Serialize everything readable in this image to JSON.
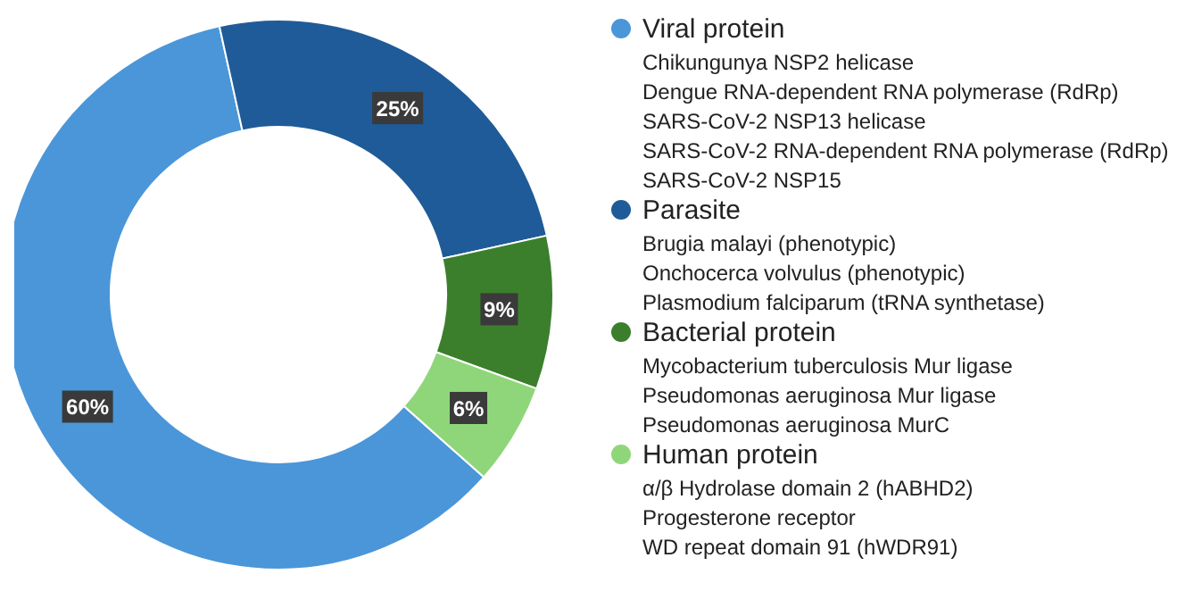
{
  "chart_data": {
    "type": "donut",
    "categories": [
      "Viral protein",
      "Parasite",
      "Bacterial protein",
      "Human protein"
    ],
    "values": [
      60,
      25,
      9,
      6
    ],
    "colors": [
      "#4a96d9",
      "#1f5b98",
      "#3b7f2c",
      "#8fd67a"
    ],
    "value_labels": [
      "60%",
      "25%",
      "9%",
      "6%"
    ],
    "legend": "right",
    "annotations": [
      {
        "text": "Chikungunya NSP2 helicase",
        "x": "Viral protein"
      },
      {
        "text": "Dengue RNA-dependent RNA polymerase (RdRp)",
        "x": "Viral protein"
      },
      {
        "text": "SARS-CoV-2 NSP13 helicase",
        "x": "Viral protein"
      },
      {
        "text": "SARS-CoV-2 RNA-dependent RNA polymerase (RdRp)",
        "x": "Viral protein"
      },
      {
        "text": "SARS-CoV-2 NSP15",
        "x": "Viral protein"
      },
      {
        "text": "Brugia malayi (phenotypic)",
        "x": "Parasite"
      },
      {
        "text": "Onchocerca volvulus (phenotypic)",
        "x": "Parasite"
      },
      {
        "text": "Plasmodium falciparum (tRNA synthetase)",
        "x": "Parasite"
      },
      {
        "text": "Mycobacterium tuberculosis Mur ligase",
        "x": "Bacterial protein"
      },
      {
        "text": "Pseudomonas aeruginosa Mur ligase",
        "x": "Bacterial protein"
      },
      {
        "text": "Pseudomonas aeruginosa MurC",
        "x": "Bacterial protein"
      },
      {
        "text": "α/β Hydrolase domain 2 (hABHD2)",
        "x": "Human protein"
      },
      {
        "text": "Progesterone receptor",
        "x": "Human protein"
      },
      {
        "text": "WD repeat domain 91 (hWDR91)",
        "x": "Human protein"
      }
    ]
  }
}
